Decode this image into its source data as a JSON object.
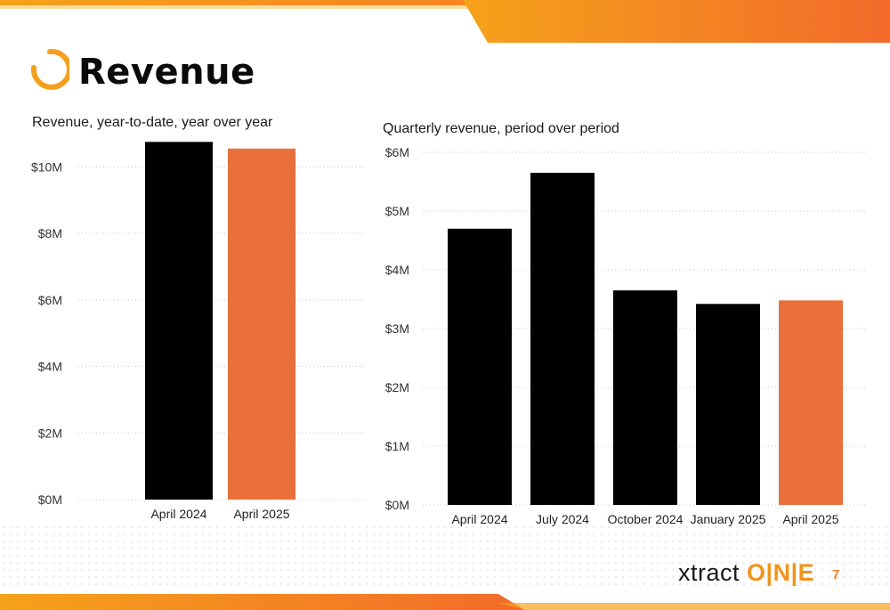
{
  "page": {
    "title": "Revenue",
    "page_number": "7",
    "brand_logo": "xtract one",
    "accent_color": "#f0941b",
    "highlight_color": "#e9703a",
    "bar_color": "#000000"
  },
  "chart_data": [
    {
      "type": "bar",
      "title": "Revenue, year-to-date, year over year",
      "xlabel": "",
      "ylabel": "",
      "categories": [
        "April 2024",
        "April 2025"
      ],
      "values": [
        10.75,
        10.55
      ],
      "unit": "M",
      "bar_colors": [
        "#000000",
        "#e9703a"
      ],
      "ylim": [
        0,
        11
      ],
      "yticks": [
        0,
        2,
        4,
        6,
        8,
        10
      ],
      "ytick_labels": [
        "$0M",
        "$2M",
        "$4M",
        "$6M",
        "$8M",
        "$10M"
      ],
      "grid": true,
      "legend": "none"
    },
    {
      "type": "bar",
      "title": "Quarterly revenue, period over period",
      "xlabel": "",
      "ylabel": "",
      "categories": [
        "April 2024",
        "July 2024",
        "October 2024",
        "January 2025",
        "April 2025"
      ],
      "values": [
        4.7,
        5.65,
        3.65,
        3.42,
        3.48
      ],
      "unit": "M",
      "bar_colors": [
        "#000000",
        "#000000",
        "#000000",
        "#000000",
        "#e9703a"
      ],
      "ylim": [
        0,
        6
      ],
      "yticks": [
        0,
        1,
        2,
        3,
        4,
        5,
        6
      ],
      "ytick_labels": [
        "$0M",
        "$1M",
        "$2M",
        "$3M",
        "$4M",
        "$5M",
        "$6M"
      ],
      "grid": true,
      "legend": "none"
    }
  ]
}
